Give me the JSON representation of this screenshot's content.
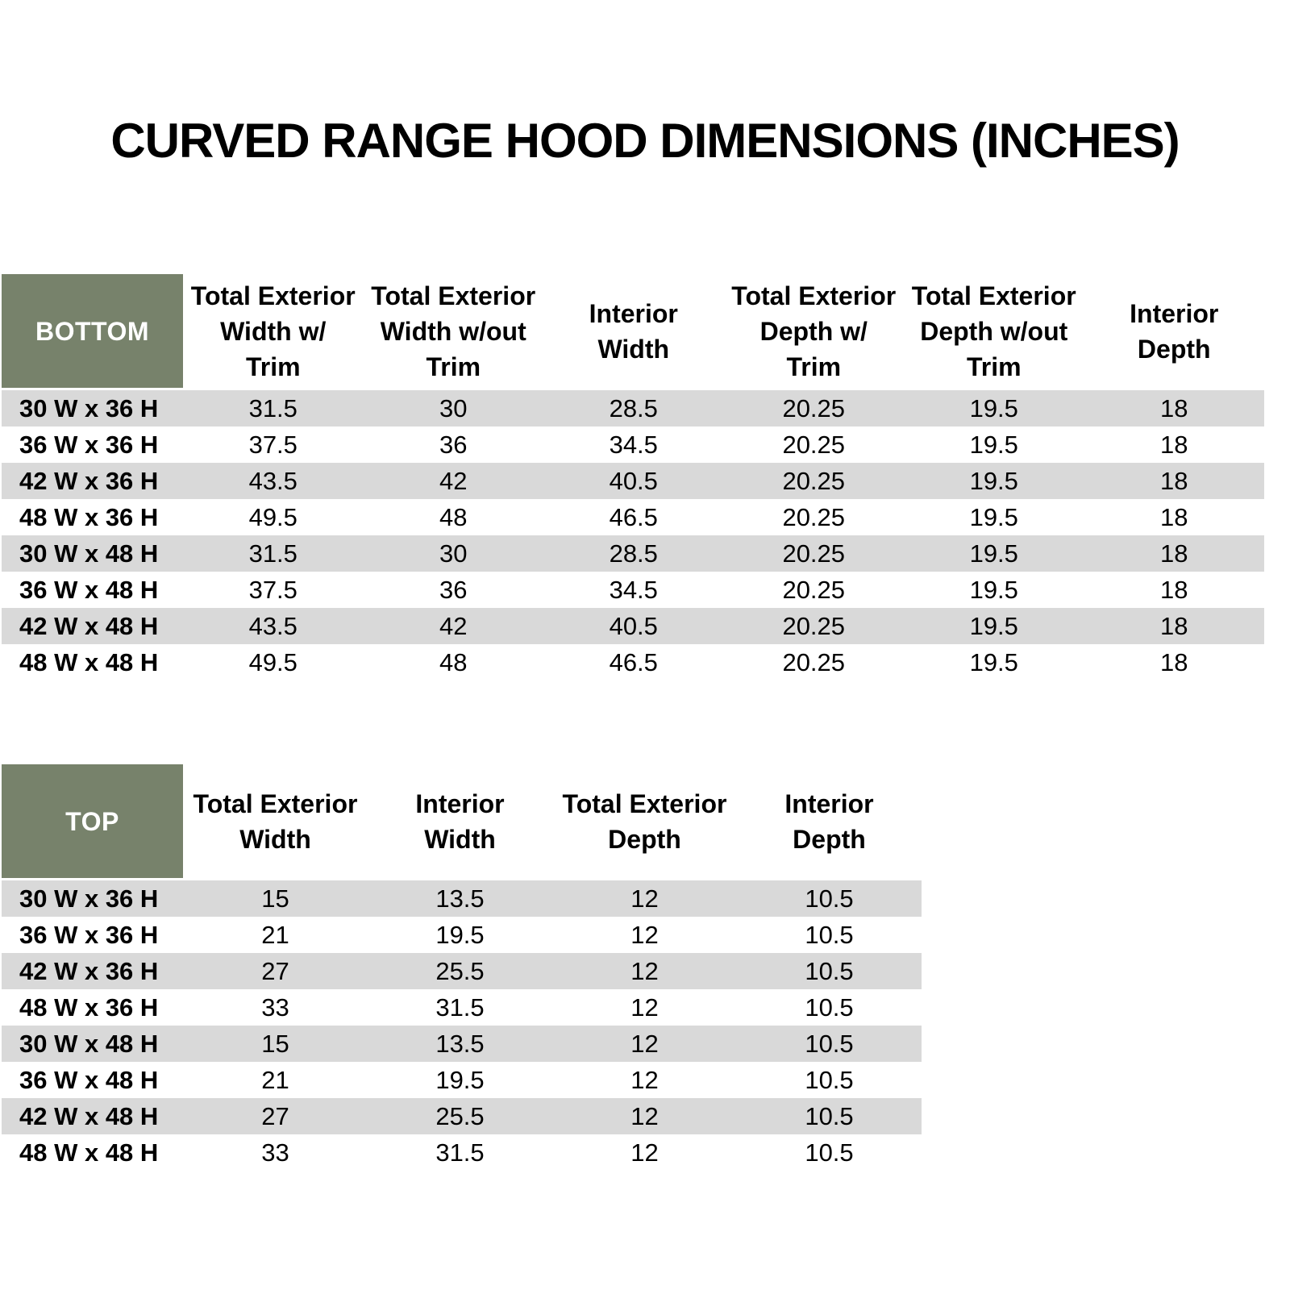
{
  "title": "CURVED RANGE HOOD DIMENSIONS (INCHES)",
  "colors": {
    "header_green": "#77826B",
    "band_gray": "#D9D9D9"
  },
  "bottom_table": {
    "label": "BOTTOM",
    "columns": [
      "Total Exterior\nWidth w/\nTrim",
      "Total Exterior\nWidth w/out\nTrim",
      "Interior\nWidth",
      "Total Exterior\nDepth w/\nTrim",
      "Total Exterior\nDepth w/out\nTrim",
      "Interior\nDepth"
    ],
    "rows": [
      {
        "label": "30 W x 36 H",
        "v": [
          "31.5",
          "30",
          "28.5",
          "20.25",
          "19.5",
          "18"
        ]
      },
      {
        "label": "36 W x 36 H",
        "v": [
          "37.5",
          "36",
          "34.5",
          "20.25",
          "19.5",
          "18"
        ]
      },
      {
        "label": "42 W x 36 H",
        "v": [
          "43.5",
          "42",
          "40.5",
          "20.25",
          "19.5",
          "18"
        ]
      },
      {
        "label": "48 W x 36 H",
        "v": [
          "49.5",
          "48",
          "46.5",
          "20.25",
          "19.5",
          "18"
        ]
      },
      {
        "label": "30 W x 48 H",
        "v": [
          "31.5",
          "30",
          "28.5",
          "20.25",
          "19.5",
          "18"
        ]
      },
      {
        "label": "36 W x 48 H",
        "v": [
          "37.5",
          "36",
          "34.5",
          "20.25",
          "19.5",
          "18"
        ]
      },
      {
        "label": "42 W x 48 H",
        "v": [
          "43.5",
          "42",
          "40.5",
          "20.25",
          "19.5",
          "18"
        ]
      },
      {
        "label": "48 W x 48 H",
        "v": [
          "49.5",
          "48",
          "46.5",
          "20.25",
          "19.5",
          "18"
        ]
      }
    ]
  },
  "top_table": {
    "label": "TOP",
    "columns": [
      "Total Exterior\nWidth",
      "Interior\nWidth",
      "Total Exterior\nDepth",
      "Interior\nDepth"
    ],
    "rows": [
      {
        "label": "30 W x 36 H",
        "v": [
          "15",
          "13.5",
          "12",
          "10.5"
        ]
      },
      {
        "label": "36 W x 36 H",
        "v": [
          "21",
          "19.5",
          "12",
          "10.5"
        ]
      },
      {
        "label": "42 W x 36 H",
        "v": [
          "27",
          "25.5",
          "12",
          "10.5"
        ]
      },
      {
        "label": "48 W x 36 H",
        "v": [
          "33",
          "31.5",
          "12",
          "10.5"
        ]
      },
      {
        "label": "30 W x 48 H",
        "v": [
          "15",
          "13.5",
          "12",
          "10.5"
        ]
      },
      {
        "label": "36 W x 48 H",
        "v": [
          "21",
          "19.5",
          "12",
          "10.5"
        ]
      },
      {
        "label": "42 W x 48 H",
        "v": [
          "27",
          "25.5",
          "12",
          "10.5"
        ]
      },
      {
        "label": "48 W x 48 H",
        "v": [
          "33",
          "31.5",
          "12",
          "10.5"
        ]
      }
    ]
  }
}
